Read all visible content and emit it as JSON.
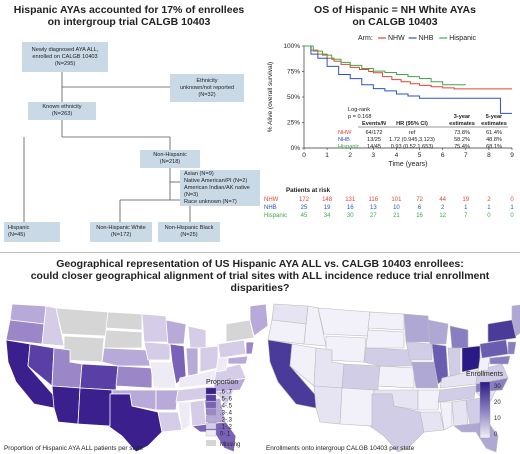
{
  "flowchart": {
    "title_line1": "Hispanic AYAs accounted for 17% of enrollees",
    "title_line2": "on intergroup trial CALGB 10403",
    "box_root_l1": "Newly diagnosed AYA ALL,",
    "box_root_l2": "enrolled on CALGB 10403",
    "box_root_l3": "(N=295)",
    "box_unknown_l1": "Ethnicity",
    "box_unknown_l2": "unknown/not reported",
    "box_unknown_l3": "(N=32)",
    "box_known_l1": "Known ethnicity",
    "box_known_l2": "(N=263)",
    "box_nonhisp_l1": "Non-Hispanic",
    "box_nonhisp_l2": "(N=218)",
    "box_other_l1": "Asian (N=9)",
    "box_other_l2": "Native American/PI (N=2)",
    "box_other_l3": "American Indian/AK native (N=3)",
    "box_other_l4": "Race unknown (N=7)",
    "box_hispanic_l1": "Hispanic",
    "box_hispanic_l2": "(N=45)",
    "box_nhw_l1": "Non-Hispanic White",
    "box_nhw_l2": "(N=172)",
    "box_nhb_l1": "Non-Hispanic Black",
    "box_nhb_l2": "(N=25)"
  },
  "km": {
    "title_line1": "OS of Hispanic = NH White AYAs",
    "title_line2": "on CALGB 10403",
    "arm_label": "Arm:",
    "logrank_l1": "Log-rank",
    "logrank_l2": "p = 0.168",
    "table_headers": [
      "Events/N",
      "HR (95% CI)",
      "3-year estimates",
      "5-year estimates"
    ],
    "table_rows": [
      {
        "group": "NHW",
        "events": "64/172",
        "hr": "ref",
        "y3": "73.8%",
        "y5": "61.4%"
      },
      {
        "group": "NHB",
        "events": "13/25",
        "hr": "1.72 (0.945,3.123)",
        "y3": "58.2%",
        "y5": "48.8%"
      },
      {
        "group": "Hispanic",
        "events": "14/45",
        "hr": "0.93 (0.52,1.653)",
        "y3": "75.4%",
        "y5": "68.1%"
      }
    ],
    "risk_title": "Patients at risk",
    "risk_rows": [
      {
        "group": "NHW",
        "values": [
          "172",
          "148",
          "131",
          "116",
          "101",
          "72",
          "44",
          "19",
          "2",
          "0"
        ]
      },
      {
        "group": "NHB",
        "values": [
          "25",
          "19",
          "16",
          "13",
          "10",
          "6",
          "2",
          "1",
          "1",
          "1"
        ]
      },
      {
        "group": "Hispanic",
        "values": [
          "45",
          "34",
          "30",
          "27",
          "21",
          "16",
          "12",
          "7",
          "0",
          "0"
        ]
      }
    ]
  },
  "chart_data": {
    "type": "line",
    "xlabel": "Time (years)",
    "ylabel": "% Alive (overall survival)",
    "xlim": [
      0,
      9
    ],
    "ylim": [
      0,
      100
    ],
    "x_ticks": [
      "0",
      "1",
      "2",
      "3",
      "4",
      "5",
      "6",
      "7",
      "8",
      "9"
    ],
    "y_ticks": [
      "0%",
      "25%",
      "50%",
      "75%",
      "100%"
    ],
    "legend_position": "top",
    "series": [
      {
        "name": "NHW",
        "color": "#e8432f",
        "x": [
          0,
          0.3,
          0.6,
          1.0,
          1.3,
          1.6,
          2.0,
          2.4,
          2.8,
          3.0,
          3.4,
          3.8,
          4.2,
          4.6,
          5.0,
          5.5,
          6.0,
          6.5,
          7.0,
          8.0,
          9.0
        ],
        "y": [
          100,
          96,
          92,
          88,
          85,
          82,
          79,
          77,
          75,
          73.8,
          70,
          67,
          65,
          63,
          61.4,
          60,
          59,
          58,
          58,
          58,
          58
        ]
      },
      {
        "name": "NHB",
        "color": "#2b52c9",
        "x": [
          0,
          0.3,
          0.6,
          1.0,
          1.5,
          2.0,
          2.5,
          3.0,
          3.5,
          4.0,
          4.5,
          5.0,
          6.0,
          7.0,
          8.0,
          8.5,
          9.0
        ],
        "y": [
          100,
          92,
          88,
          80,
          72,
          68,
          62,
          58.2,
          56,
          53,
          51,
          48.8,
          48.8,
          48.8,
          48.8,
          34,
          34
        ]
      },
      {
        "name": "Hispanic",
        "color": "#3ea84a",
        "x": [
          0,
          0.4,
          0.8,
          1.2,
          1.6,
          2.0,
          2.5,
          3.0,
          3.5,
          4.0,
          4.5,
          5.0,
          5.5,
          6.0,
          7.0
        ],
        "y": [
          100,
          95,
          91,
          87,
          84,
          81,
          78,
          75.4,
          74,
          72,
          70,
          68.1,
          65,
          62,
          62
        ]
      }
    ]
  },
  "maps": {
    "title_line1": "Geographical representation of US Hispanic AYA ALL vs. CALGB 10403 enrollees:",
    "title_line2": "could closer geographical alignment of trial sites with ALL incidence reduce trial enrollment disparities?",
    "left_caption": "Proportion of Hispanic AYA ALL patients per state",
    "right_caption": "Enrollments onto intergroup CALGB 10403 per state",
    "legend_left_title": "Proportion",
    "legend_left_items": [
      ".6-.7",
      ".5-.6",
      ".4-.5",
      ".3-.4",
      ".2-.3",
      ".1-.2",
      "0-.1"
    ],
    "legend_left_missing": "Missing",
    "legend_left_colors": [
      "#3b1f8c",
      "#5a3fa6",
      "#7a62b8",
      "#9b87c8",
      "#b8aad8",
      "#d5cce8",
      "#efebf6"
    ],
    "legend_right_title": "Enrollments",
    "legend_right_ticks": [
      "30",
      "20",
      "10",
      "0"
    ],
    "legend_right_colors": [
      "#2a1a86",
      "#6a5cb0",
      "#b0a8d4",
      "#f2f0f8"
    ]
  }
}
